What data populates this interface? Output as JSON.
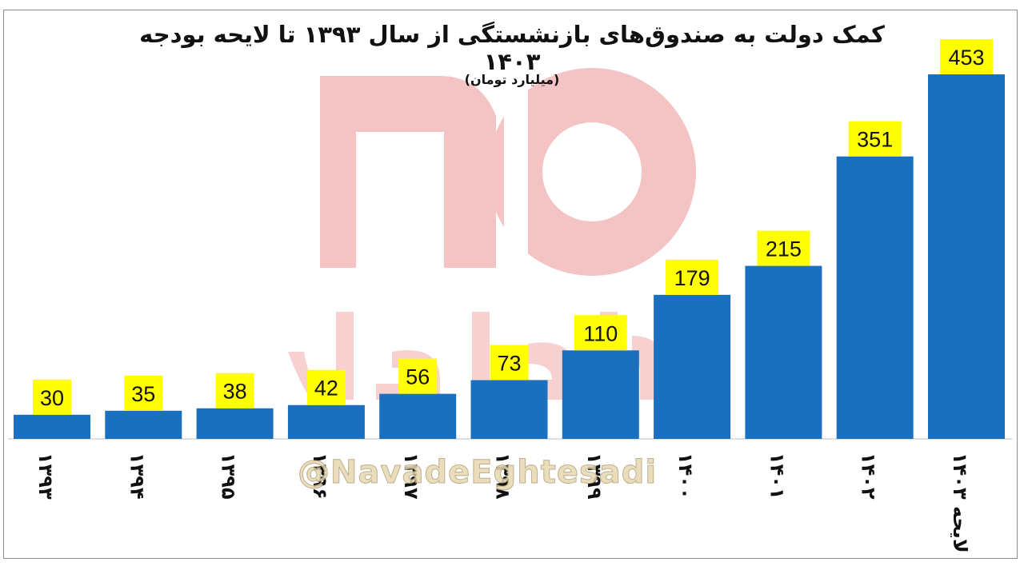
{
  "chart_data": {
    "type": "bar",
    "title": "کمک دولت به صندوق‌های بازنشستگی از  سال ۱۳۹۳ تا لایحه بودجه ۱۴۰۳",
    "subtitle": "(میلیارد تومان)",
    "categories": [
      "۱۳۹۳",
      "۱۳۹۴",
      "۱۳۹۵",
      "۱۳۹۶",
      "۱۳۹۷",
      "۱۳۹۸",
      "۱۳۹۹",
      "۱۴۰۰",
      "۱۴۰۱",
      "۱۴۰۲",
      "لایحه ۱۴۰۳"
    ],
    "values": [
      30,
      35,
      38,
      42,
      56,
      73,
      110,
      179,
      215,
      351,
      453
    ],
    "data_labels": [
      "30",
      "35",
      "38",
      "42",
      "56",
      "73",
      "110",
      "179",
      "215",
      "351",
      "453"
    ],
    "ylim": [
      0,
      453
    ],
    "bar_color": "#1a6fbf",
    "label_background": "#ffff00",
    "grid": false,
    "legend": "none"
  },
  "watermark": {
    "handle": "@NavadeEghtesadi",
    "logo_color": "#f4bcbc"
  }
}
